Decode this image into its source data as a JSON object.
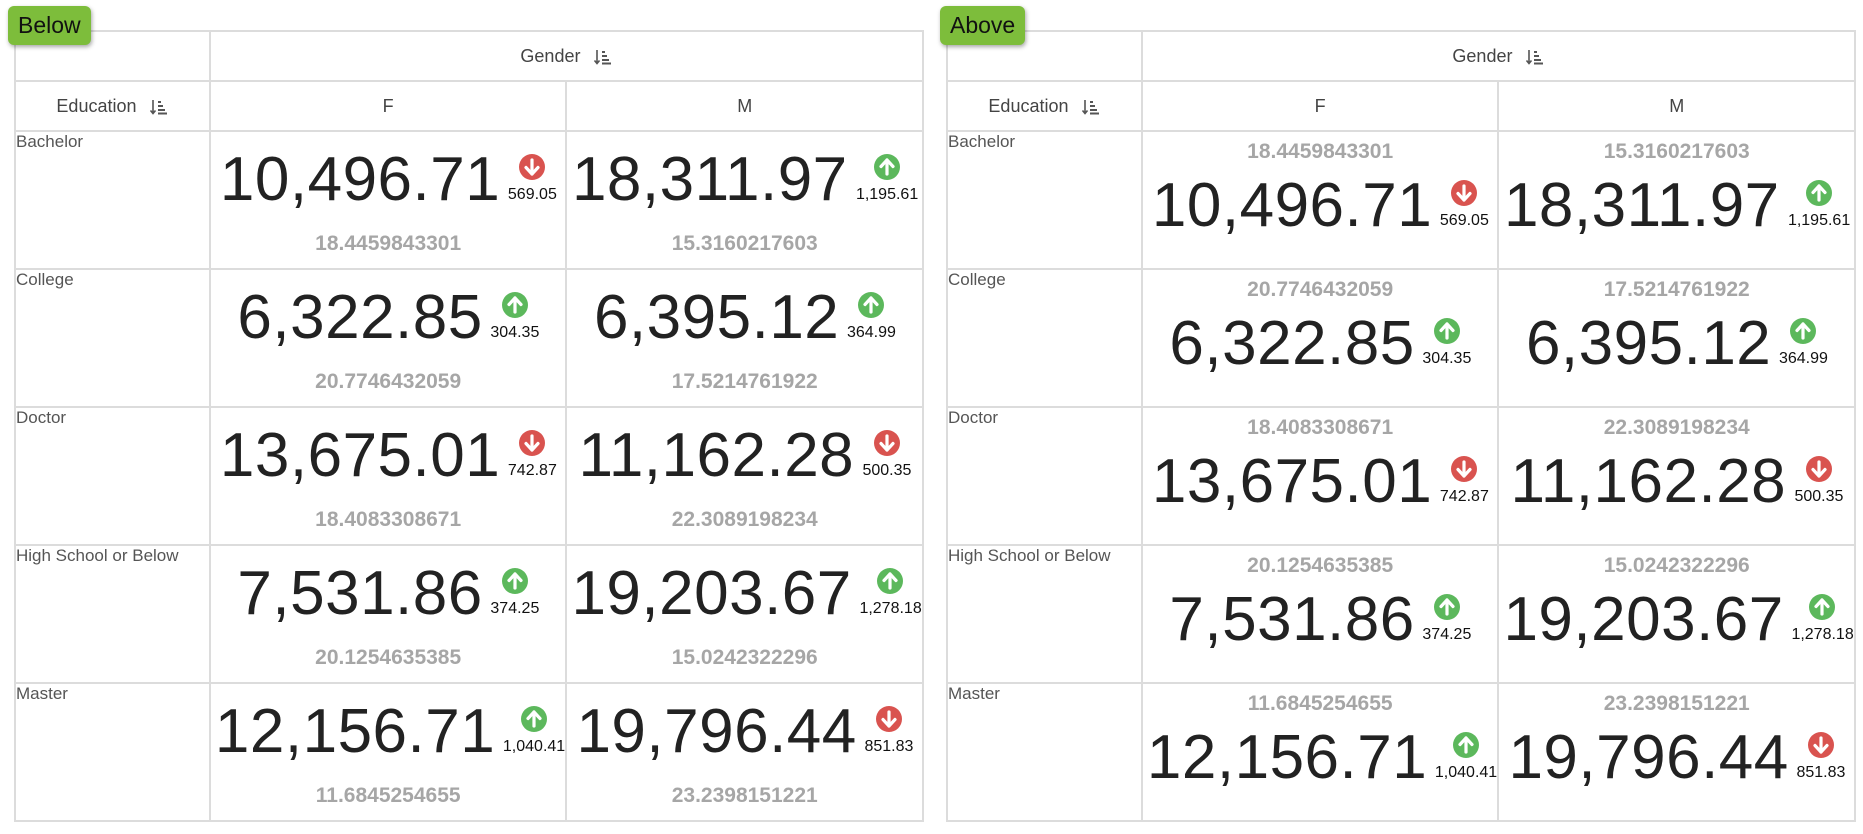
{
  "panels": [
    {
      "tag": "Below",
      "position": "below",
      "column_header": "Gender",
      "row_header": "Education",
      "columns": [
        "F",
        "M"
      ],
      "rows": [
        {
          "label": "Bachelor",
          "cells": [
            {
              "value": "10,496.71",
              "dir": "down",
              "delta": "569.05",
              "sub": "18.4459843301"
            },
            {
              "value": "18,311.97",
              "dir": "up",
              "delta": "1,195.61",
              "sub": "15.3160217603"
            }
          ]
        },
        {
          "label": "College",
          "cells": [
            {
              "value": "6,322.85",
              "dir": "up",
              "delta": "304.35",
              "sub": "20.7746432059"
            },
            {
              "value": "6,395.12",
              "dir": "up",
              "delta": "364.99",
              "sub": "17.5214761922"
            }
          ]
        },
        {
          "label": "Doctor",
          "cells": [
            {
              "value": "13,675.01",
              "dir": "down",
              "delta": "742.87",
              "sub": "18.4083308671"
            },
            {
              "value": "11,162.28",
              "dir": "down",
              "delta": "500.35",
              "sub": "22.3089198234"
            }
          ]
        },
        {
          "label": "High School or Below",
          "cells": [
            {
              "value": "7,531.86",
              "dir": "up",
              "delta": "374.25",
              "sub": "20.1254635385"
            },
            {
              "value": "19,203.67",
              "dir": "up",
              "delta": "1,278.18",
              "sub": "15.0242322296"
            }
          ]
        },
        {
          "label": "Master",
          "cells": [
            {
              "value": "12,156.71",
              "dir": "up",
              "delta": "1,040.41",
              "sub": "11.6845254655"
            },
            {
              "value": "19,796.44",
              "dir": "down",
              "delta": "851.83",
              "sub": "23.2398151221"
            }
          ]
        }
      ]
    },
    {
      "tag": "Above",
      "position": "above",
      "column_header": "Gender",
      "row_header": "Education",
      "columns": [
        "F",
        "M"
      ],
      "rows": [
        {
          "label": "Bachelor",
          "cells": [
            {
              "value": "10,496.71",
              "dir": "down",
              "delta": "569.05",
              "sub": "18.4459843301"
            },
            {
              "value": "18,311.97",
              "dir": "up",
              "delta": "1,195.61",
              "sub": "15.3160217603"
            }
          ]
        },
        {
          "label": "College",
          "cells": [
            {
              "value": "6,322.85",
              "dir": "up",
              "delta": "304.35",
              "sub": "20.7746432059"
            },
            {
              "value": "6,395.12",
              "dir": "up",
              "delta": "364.99",
              "sub": "17.5214761922"
            }
          ]
        },
        {
          "label": "Doctor",
          "cells": [
            {
              "value": "13,675.01",
              "dir": "down",
              "delta": "742.87",
              "sub": "18.4083308671"
            },
            {
              "value": "11,162.28",
              "dir": "down",
              "delta": "500.35",
              "sub": "22.3089198234"
            }
          ]
        },
        {
          "label": "High School or Below",
          "cells": [
            {
              "value": "7,531.86",
              "dir": "up",
              "delta": "374.25",
              "sub": "20.1254635385"
            },
            {
              "value": "19,203.67",
              "dir": "up",
              "delta": "1,278.18",
              "sub": "15.0242322296"
            }
          ]
        },
        {
          "label": "Master",
          "cells": [
            {
              "value": "12,156.71",
              "dir": "up",
              "delta": "1,040.41",
              "sub": "11.6845254655"
            },
            {
              "value": "19,796.44",
              "dir": "down",
              "delta": "851.83",
              "sub": "23.2398151221"
            }
          ]
        }
      ]
    }
  ],
  "colors": {
    "up": "#5cb85c",
    "down": "#d9534f",
    "tag": "#7dbd3b",
    "secondary": "#a6a6a6"
  },
  "icons": {
    "sort": "sort-descending-icon",
    "up": "arrow-up-circle-icon",
    "down": "arrow-down-circle-icon"
  }
}
